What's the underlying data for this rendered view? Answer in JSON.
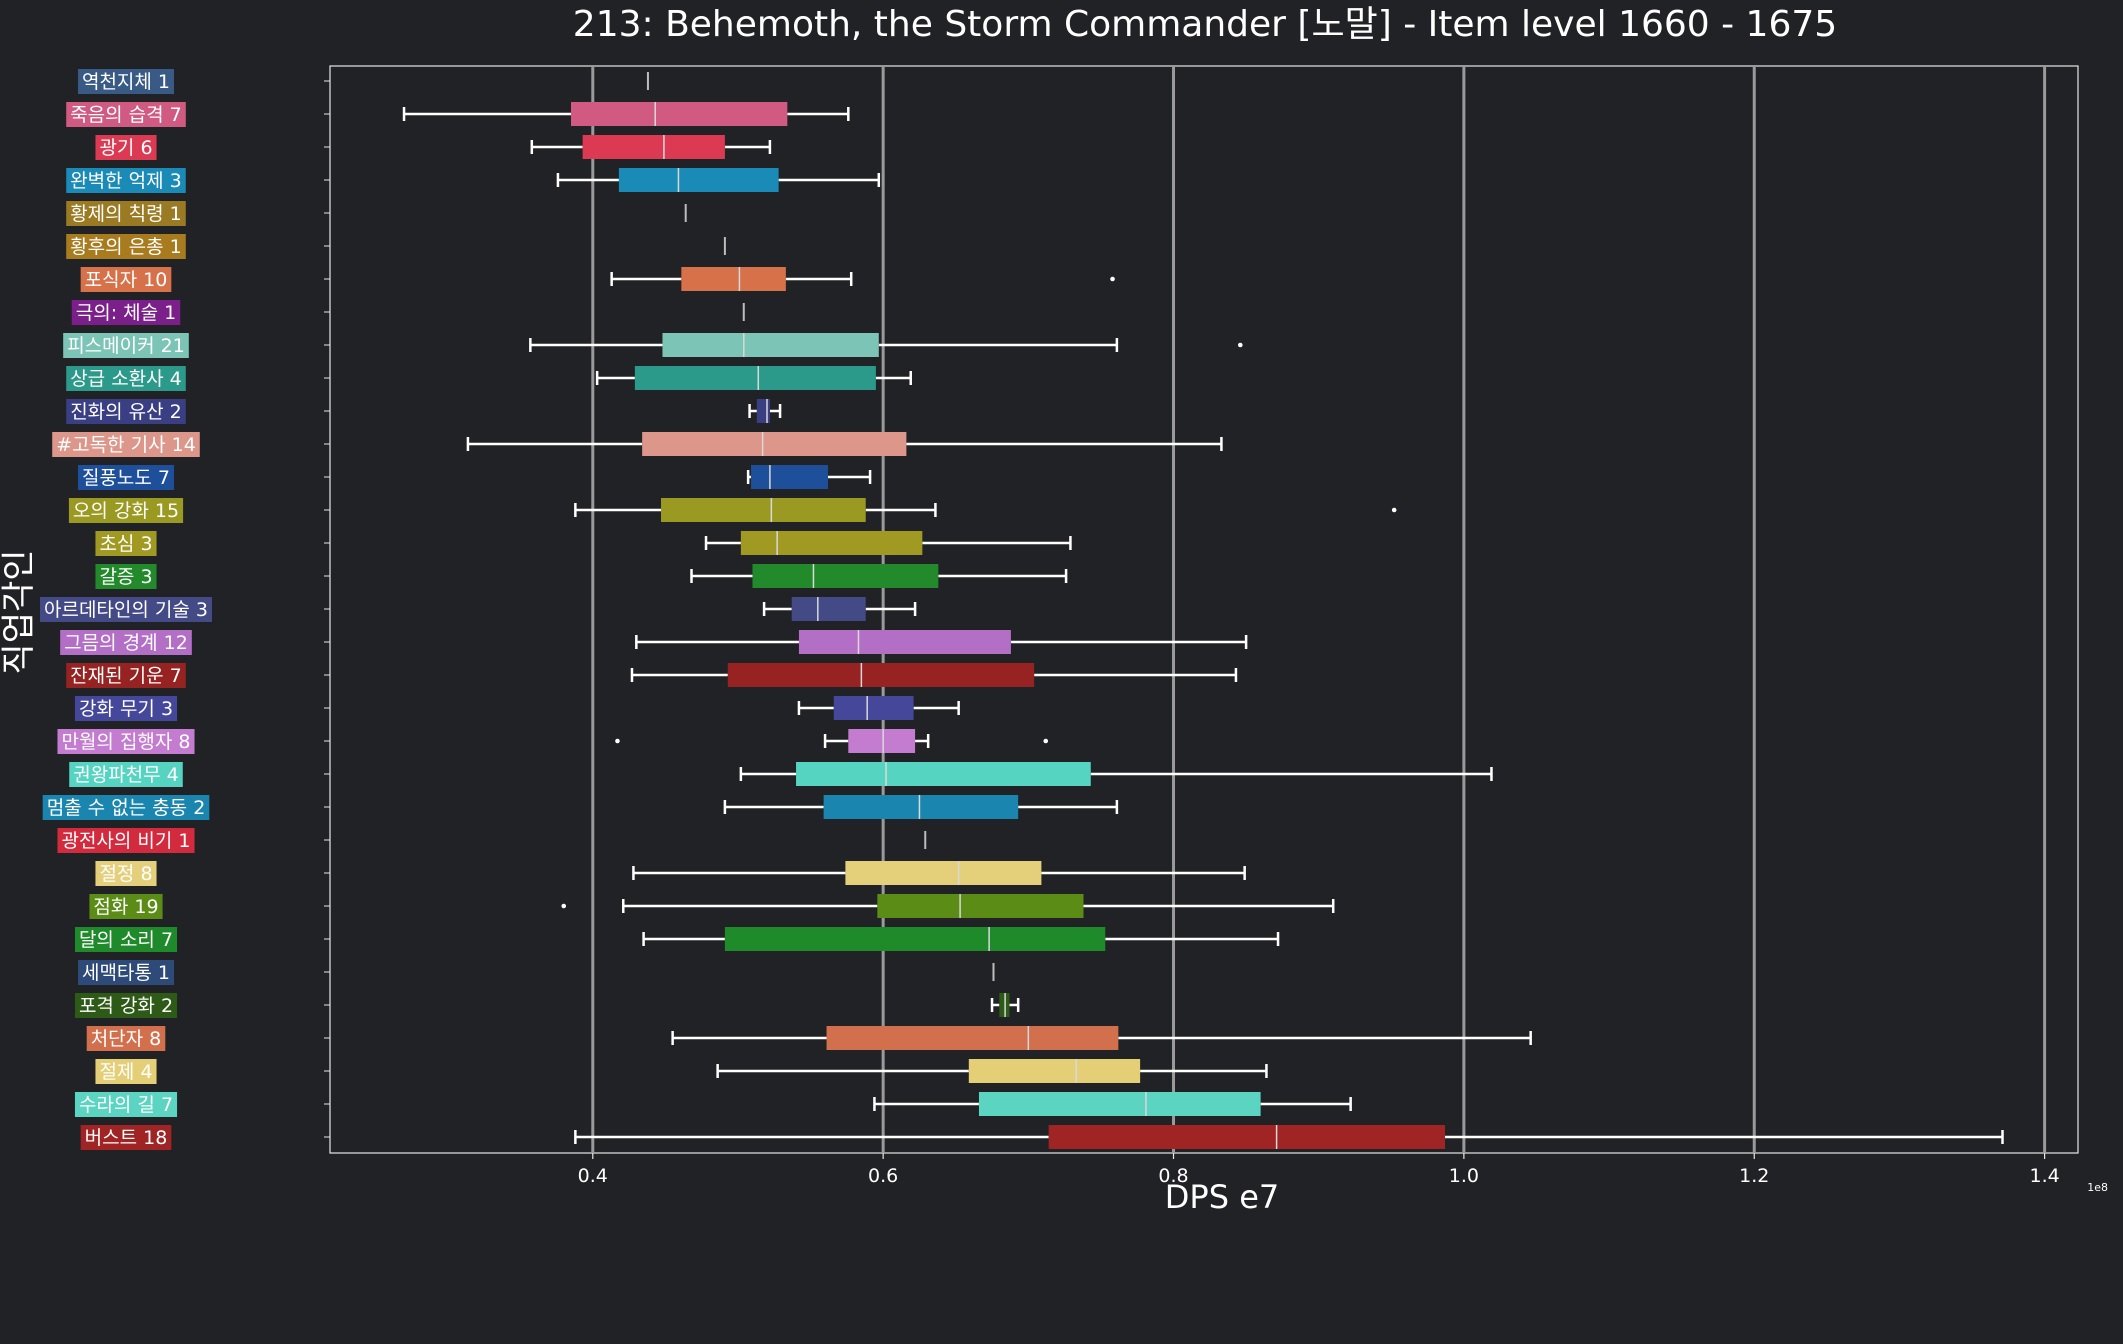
{
  "chart_data": {
    "type": "box",
    "orientation": "horizontal",
    "title": "213: Behemoth, the Storm Commander [노말] - Item level 1660 - 1675",
    "xlabel": "DPS e7",
    "ylabel": "직업각인",
    "x_scale_note": "1e8",
    "xlim": [
      2190000,
      14230000
    ],
    "xticks": [
      {
        "value": 4000000,
        "label": "0.4"
      },
      {
        "value": 6000000,
        "label": "0.6"
      },
      {
        "value": 8000000,
        "label": "0.8"
      },
      {
        "value": 10000000,
        "label": "1.0"
      },
      {
        "value": 12000000,
        "label": "1.2"
      },
      {
        "value": 14000000,
        "label": "1.4"
      }
    ],
    "grid": "vertical",
    "categories": [
      {
        "label": "역천지체 1",
        "color": "#3a5a86",
        "whisker_low": 4380000,
        "q1": 4380000,
        "median": 4380000,
        "q3": 4380000,
        "whisker_high": 4380000,
        "outliers": []
      },
      {
        "label": "죽음의 습격 7",
        "color": "#d15a83",
        "whisker_low": 2700000,
        "q1": 3850000,
        "median": 4430000,
        "q3": 5340000,
        "whisker_high": 5760000,
        "outliers": []
      },
      {
        "label": "광기 6",
        "color": "#dc3a52",
        "whisker_low": 3580000,
        "q1": 3930000,
        "median": 4490000,
        "q3": 4910000,
        "whisker_high": 5220000,
        "outliers": []
      },
      {
        "label": "완벽한 억제 3",
        "color": "#1a8ab6",
        "whisker_low": 3760000,
        "q1": 4180000,
        "median": 4590000,
        "q3": 5280000,
        "whisker_high": 5970000,
        "outliers": []
      },
      {
        "label": "황제의 칙령 1",
        "color": "#9a7a22",
        "whisker_low": 4640000,
        "q1": 4640000,
        "median": 4640000,
        "q3": 4640000,
        "whisker_high": 4640000,
        "outliers": []
      },
      {
        "label": "황후의 은총 1",
        "color": "#a87c1e",
        "whisker_low": 4910000,
        "q1": 4910000,
        "median": 4910000,
        "q3": 4910000,
        "whisker_high": 4910000,
        "outliers": []
      },
      {
        "label": "포식자 10",
        "color": "#d6714a",
        "whisker_low": 4130000,
        "q1": 4610000,
        "median": 5010000,
        "q3": 5330000,
        "whisker_high": 5780000,
        "outliers": [
          7580000
        ]
      },
      {
        "label": "극의: 체술 1",
        "color": "#7b1f8a",
        "whisker_low": 5040000,
        "q1": 5040000,
        "median": 5040000,
        "q3": 5040000,
        "whisker_high": 5040000,
        "outliers": []
      },
      {
        "label": "피스메이커 21",
        "color": "#7cc4b6",
        "whisker_low": 3570000,
        "q1": 4480000,
        "median": 5040000,
        "q3": 5970000,
        "whisker_high": 7610000,
        "outliers": [
          8460000
        ]
      },
      {
        "label": "상급 소환사 4",
        "color": "#2c9a8a",
        "whisker_low": 4030000,
        "q1": 4290000,
        "median": 5140000,
        "q3": 5950000,
        "whisker_high": 6190000,
        "outliers": []
      },
      {
        "label": "진화의 유산 2",
        "color": "#3a3f84",
        "whisker_low": 5080000,
        "q1": 5130000,
        "median": 5200000,
        "q3": 5220000,
        "whisker_high": 5290000,
        "outliers": []
      },
      {
        "label": "#고독한 기사 14",
        "color": "#dd968a",
        "whisker_low": 3140000,
        "q1": 4340000,
        "median": 5170000,
        "q3": 6160000,
        "whisker_high": 8330000,
        "outliers": []
      },
      {
        "label": "질풍노도 7",
        "color": "#1e4f9a",
        "whisker_low": 5070000,
        "q1": 5090000,
        "median": 5220000,
        "q3": 5620000,
        "whisker_high": 5910000,
        "outliers": []
      },
      {
        "label": "오의 강화 15",
        "color": "#9a9a22",
        "whisker_low": 3880000,
        "q1": 4470000,
        "median": 5230000,
        "q3": 5880000,
        "whisker_high": 6360000,
        "outliers": [
          9520000
        ]
      },
      {
        "label": "초심 3",
        "color": "#a09a22",
        "whisker_low": 4780000,
        "q1": 5020000,
        "median": 5270000,
        "q3": 6270000,
        "whisker_high": 7290000,
        "outliers": []
      },
      {
        "label": "갈증 3",
        "color": "#228a2a",
        "whisker_low": 4680000,
        "q1": 5100000,
        "median": 5520000,
        "q3": 6380000,
        "whisker_high": 7260000,
        "outliers": []
      },
      {
        "label": "아르데타인의 기술 3",
        "color": "#434a86",
        "whisker_low": 5180000,
        "q1": 5370000,
        "median": 5550000,
        "q3": 5880000,
        "whisker_high": 6220000,
        "outliers": []
      },
      {
        "label": "그믐의 경계 12",
        "color": "#b36fc6",
        "whisker_low": 4300000,
        "q1": 5420000,
        "median": 5830000,
        "q3": 6880000,
        "whisker_high": 8500000,
        "outliers": []
      },
      {
        "label": "잔재된 기운 7",
        "color": "#962222",
        "whisker_low": 4270000,
        "q1": 4930000,
        "median": 5850000,
        "q3": 7040000,
        "whisker_high": 8430000,
        "outliers": []
      },
      {
        "label": "강화 무기 3",
        "color": "#45479a",
        "whisker_low": 5420000,
        "q1": 5660000,
        "median": 5890000,
        "q3": 6210000,
        "whisker_high": 6520000,
        "outliers": []
      },
      {
        "label": "만월의 집행자 8",
        "color": "#c37cd0",
        "whisker_low": 5600000,
        "q1": 5760000,
        "median": 6000000,
        "q3": 6220000,
        "whisker_high": 6310000,
        "outliers": [
          4170000,
          7120000
        ]
      },
      {
        "label": "권왕파천무 4",
        "color": "#55d4c2",
        "whisker_low": 5020000,
        "q1": 5400000,
        "median": 6020000,
        "q3": 7430000,
        "whisker_high": 10190000,
        "outliers": []
      },
      {
        "label": "멈출 수 없는 충동 2",
        "color": "#1a86b0",
        "whisker_low": 4910000,
        "q1": 5590000,
        "median": 6250000,
        "q3": 6930000,
        "whisker_high": 7610000,
        "outliers": []
      },
      {
        "label": "광전사의 비기 1",
        "color": "#d42a3e",
        "whisker_low": 6290000,
        "q1": 6290000,
        "median": 6290000,
        "q3": 6290000,
        "whisker_high": 6290000,
        "outliers": []
      },
      {
        "label": "절정 8",
        "color": "#e4cf7b",
        "whisker_low": 4280000,
        "q1": 5740000,
        "median": 6520000,
        "q3": 7090000,
        "whisker_high": 8490000,
        "outliers": []
      },
      {
        "label": "점화 19",
        "color": "#5a8c16",
        "whisker_low": 4210000,
        "q1": 5960000,
        "median": 6530000,
        "q3": 7380000,
        "whisker_high": 9100000,
        "outliers": [
          3800000
        ]
      },
      {
        "label": "달의 소리 7",
        "color": "#1f8a2a",
        "whisker_low": 4350000,
        "q1": 4910000,
        "median": 6730000,
        "q3": 7530000,
        "whisker_high": 8720000,
        "outliers": []
      },
      {
        "label": "세맥타통 1",
        "color": "#2e4a78",
        "whisker_low": 6760000,
        "q1": 6760000,
        "median": 6760000,
        "q3": 6760000,
        "whisker_high": 6760000,
        "outliers": []
      },
      {
        "label": "포격 강화 2",
        "color": "#2d5a16",
        "whisker_low": 6750000,
        "q1": 6800000,
        "median": 6840000,
        "q3": 6870000,
        "whisker_high": 6930000,
        "outliers": []
      },
      {
        "label": "처단자 8",
        "color": "#d2704e",
        "whisker_low": 4550000,
        "q1": 5610000,
        "median": 7000000,
        "q3": 7620000,
        "whisker_high": 10460000,
        "outliers": []
      },
      {
        "label": "절제 4",
        "color": "#e4cf77",
        "whisker_low": 4860000,
        "q1": 6590000,
        "median": 7330000,
        "q3": 7770000,
        "whisker_high": 8640000,
        "outliers": []
      },
      {
        "label": "수라의 길 7",
        "color": "#5cd4c2",
        "whisker_low": 5940000,
        "q1": 6660000,
        "median": 7810000,
        "q3": 8600000,
        "whisker_high": 9220000,
        "outliers": []
      },
      {
        "label": "버스트 18",
        "color": "#a02424",
        "whisker_low": 3880000,
        "q1": 7140000,
        "median": 8710000,
        "q3": 9870000,
        "whisker_high": 13710000,
        "outliers": []
      }
    ]
  }
}
